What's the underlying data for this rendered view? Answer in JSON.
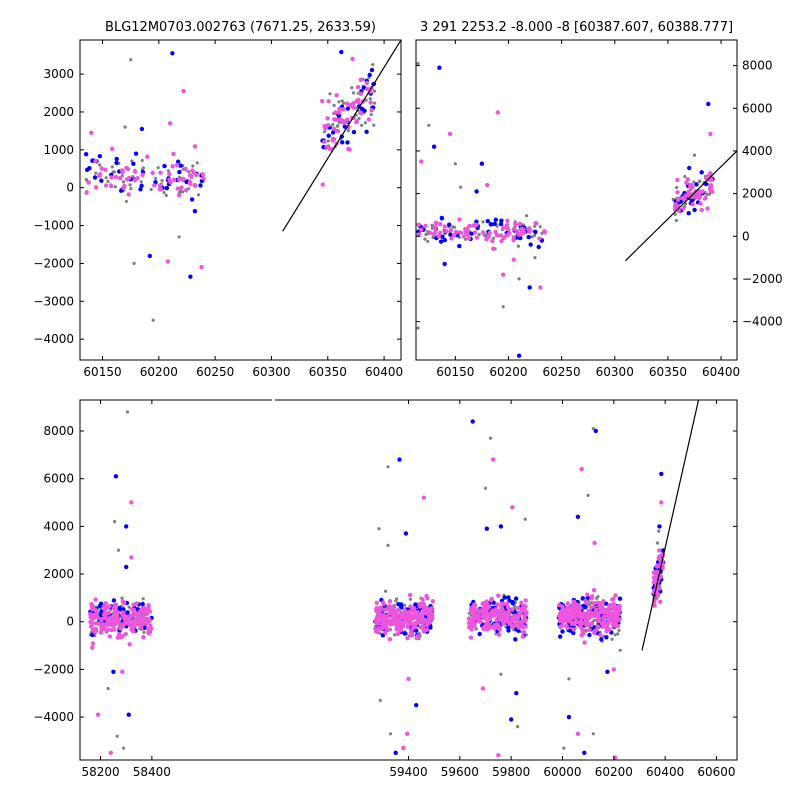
{
  "colors": {
    "grey": "#7f7f7f",
    "blue": "#0000ff",
    "magenta": "#ee55dd",
    "line": "#000000"
  },
  "chart_data": [
    {
      "type": "scatter",
      "title": "BLG12M0703.002763 (7671.25, 2633.59)",
      "xlim": [
        60130,
        60415
      ],
      "ylim": [
        -4550,
        3900
      ],
      "xticks": [
        60150,
        60200,
        60250,
        60300,
        60350,
        60400
      ],
      "yticks": [
        -4000,
        -3000,
        -2000,
        -1000,
        0,
        1000,
        2000,
        3000
      ],
      "y_axis_side": "left",
      "line": {
        "x": [
          60310,
          60415
        ],
        "y": [
          -1150,
          3900
        ]
      },
      "groups": [
        {
          "x_range": [
            60135,
            60240
          ],
          "y_center": 300,
          "y_spread": 500,
          "n": [
            55,
            40,
            60
          ],
          "outliers": [
            [
              60175,
              3380
            ],
            [
              60212,
              3550
            ],
            [
              60222,
              2550
            ],
            [
              60178,
              -2000
            ],
            [
              60192,
              -1800
            ],
            [
              60208,
              -1950
            ],
            [
              60195,
              -3500
            ],
            [
              60228,
              -2350
            ],
            [
              60238,
              -2100
            ],
            [
              60218,
              -1300
            ],
            [
              60232,
              -620
            ],
            [
              60140,
              1450
            ],
            [
              60170,
              1600
            ],
            [
              60185,
              1550
            ],
            [
              60210,
              1700
            ]
          ]
        },
        {
          "x_range": [
            60345,
            60392
          ],
          "y_center": 1900,
          "y_spread": 650,
          "slope": 25,
          "n": [
            45,
            30,
            55
          ],
          "outliers": [
            [
              60352,
              2480
            ],
            [
              60362,
              3580
            ],
            [
              60372,
              3400
            ],
            [
              60390,
              3250
            ]
          ]
        }
      ]
    },
    {
      "type": "scatter",
      "title": "3 291 2253.2 -8.000 -8 [60387.607, 60388.777]",
      "xlim": [
        60113,
        60415
      ],
      "ylim": [
        -5800,
        9200
      ],
      "xticks": [
        60150,
        60200,
        60250,
        60300,
        60350,
        60400
      ],
      "yticks": [
        -4000,
        -2000,
        0,
        2000,
        4000,
        6000,
        8000
      ],
      "y_axis_side": "right",
      "line": {
        "x": [
          60310,
          60415
        ],
        "y": [
          -1150,
          4000
        ]
      },
      "groups": [
        {
          "x_range": [
            60115,
            60235
          ],
          "y_center": 200,
          "y_spread": 500,
          "n": [
            60,
            45,
            75
          ],
          "outliers": [
            [
              60115,
              8100
            ],
            [
              60135,
              7900
            ],
            [
              60118,
              3500
            ],
            [
              60125,
              5200
            ],
            [
              60130,
              4200
            ],
            [
              60145,
              4800
            ],
            [
              60150,
              3400
            ],
            [
              60175,
              3400
            ],
            [
              60190,
              5800
            ],
            [
              60155,
              2300
            ],
            [
              60170,
              2100
            ],
            [
              60180,
              2400
            ],
            [
              60195,
              -3300
            ],
            [
              60210,
              -5600
            ],
            [
              60195,
              -1800
            ],
            [
              60210,
              -2000
            ],
            [
              60220,
              -2400
            ],
            [
              60230,
              -2400
            ],
            [
              60115,
              -4300
            ],
            [
              60140,
              -1300
            ],
            [
              60205,
              -1100
            ],
            [
              60225,
              -1000
            ]
          ]
        },
        {
          "x_range": [
            60355,
            60392
          ],
          "y_center": 1900,
          "y_spread": 700,
          "slope": 30,
          "n": [
            40,
            28,
            50
          ],
          "outliers": [
            [
              60375,
              3800
            ],
            [
              60388,
              6200
            ],
            [
              60390,
              4800
            ],
            [
              60366,
              2800
            ],
            [
              60370,
              3200
            ]
          ]
        }
      ]
    },
    {
      "type": "scatter",
      "title": "",
      "xlim": [
        58120,
        60680
      ],
      "ylim": [
        -5800,
        9300
      ],
      "xticks": [
        58200,
        58400,
        59400,
        59600,
        59800,
        60000,
        60200,
        60400,
        60600
      ],
      "yticks": [
        -4000,
        -2000,
        0,
        2000,
        4000,
        6000,
        8000
      ],
      "y_axis_side": "left",
      "axis_break": {
        "x": [
          58495,
          59250
        ]
      },
      "line": {
        "x": [
          60310,
          60530
        ],
        "y": [
          -1200,
          9300
        ]
      },
      "groups": [
        {
          "x_range": [
            58160,
            58400
          ],
          "y_center": 100,
          "y_spread": 650,
          "n": [
            80,
            60,
            160
          ],
          "outliers": [
            [
              58305,
              8800
            ],
            [
              58260,
              6100
            ],
            [
              58320,
              5000
            ],
            [
              58255,
              4200
            ],
            [
              58300,
              4000
            ],
            [
              58190,
              -3900
            ],
            [
              58265,
              -4800
            ],
            [
              58310,
              -3900
            ],
            [
              58240,
              -5500
            ],
            [
              58290,
              -5300
            ],
            [
              58300,
              2300
            ],
            [
              58320,
              2700
            ],
            [
              58270,
              3000
            ],
            [
              58250,
              -2100
            ],
            [
              58285,
              -2100
            ],
            [
              58230,
              -2800
            ]
          ]
        },
        {
          "x_range": [
            59270,
            59495
          ],
          "y_center": 150,
          "y_spread": 650,
          "n": [
            110,
            90,
            200
          ],
          "outliers": [
            [
              59320,
              6500
            ],
            [
              59365,
              6800
            ],
            [
              59460,
              5200
            ],
            [
              59285,
              3900
            ],
            [
              59390,
              3700
            ],
            [
              59395,
              -4700
            ],
            [
              59330,
              -4700
            ],
            [
              59350,
              -5500
            ],
            [
              59380,
              -5300
            ],
            [
              59290,
              -3300
            ],
            [
              59430,
              -3500
            ],
            [
              59400,
              -2400
            ],
            [
              59320,
              3200
            ]
          ]
        },
        {
          "x_range": [
            59635,
            59860
          ],
          "y_center": 200,
          "y_spread": 650,
          "n": [
            90,
            90,
            180
          ],
          "outliers": [
            [
              59720,
              7700
            ],
            [
              59650,
              8400
            ],
            [
              59730,
              6800
            ],
            [
              59700,
              5600
            ],
            [
              59760,
              4000
            ],
            [
              59805,
              4800
            ],
            [
              59855,
              4300
            ],
            [
              59705,
              3900
            ],
            [
              59750,
              -5600
            ],
            [
              59825,
              -4400
            ],
            [
              59800,
              -4100
            ],
            [
              59690,
              -2800
            ],
            [
              59760,
              -2200
            ],
            [
              59820,
              -3000
            ]
          ]
        },
        {
          "x_range": [
            59985,
            60225
          ],
          "y_center": 200,
          "y_spread": 650,
          "n": [
            110,
            120,
            220
          ],
          "outliers": [
            [
              60120,
              8100
            ],
            [
              60130,
              8000
            ],
            [
              60075,
              6400
            ],
            [
              60100,
              5300
            ],
            [
              60060,
              4400
            ],
            [
              60125,
              3300
            ],
            [
              60005,
              -5300
            ],
            [
              60025,
              -4000
            ],
            [
              60060,
              -4700
            ],
            [
              60120,
              -4700
            ],
            [
              60085,
              -5500
            ],
            [
              60205,
              -5700
            ],
            [
              60025,
              -2400
            ],
            [
              60175,
              -2100
            ],
            [
              60200,
              -2000
            ],
            [
              60225,
              -1200
            ]
          ]
        },
        {
          "x_range": [
            60355,
            60392
          ],
          "y_center": 1900,
          "y_spread": 700,
          "slope": 30,
          "n": [
            40,
            28,
            50
          ],
          "outliers": [
            [
              60375,
              3800
            ],
            [
              60385,
              6200
            ],
            [
              60385,
              5000
            ],
            [
              60370,
              3300
            ],
            [
              60378,
              4000
            ]
          ]
        }
      ]
    }
  ]
}
